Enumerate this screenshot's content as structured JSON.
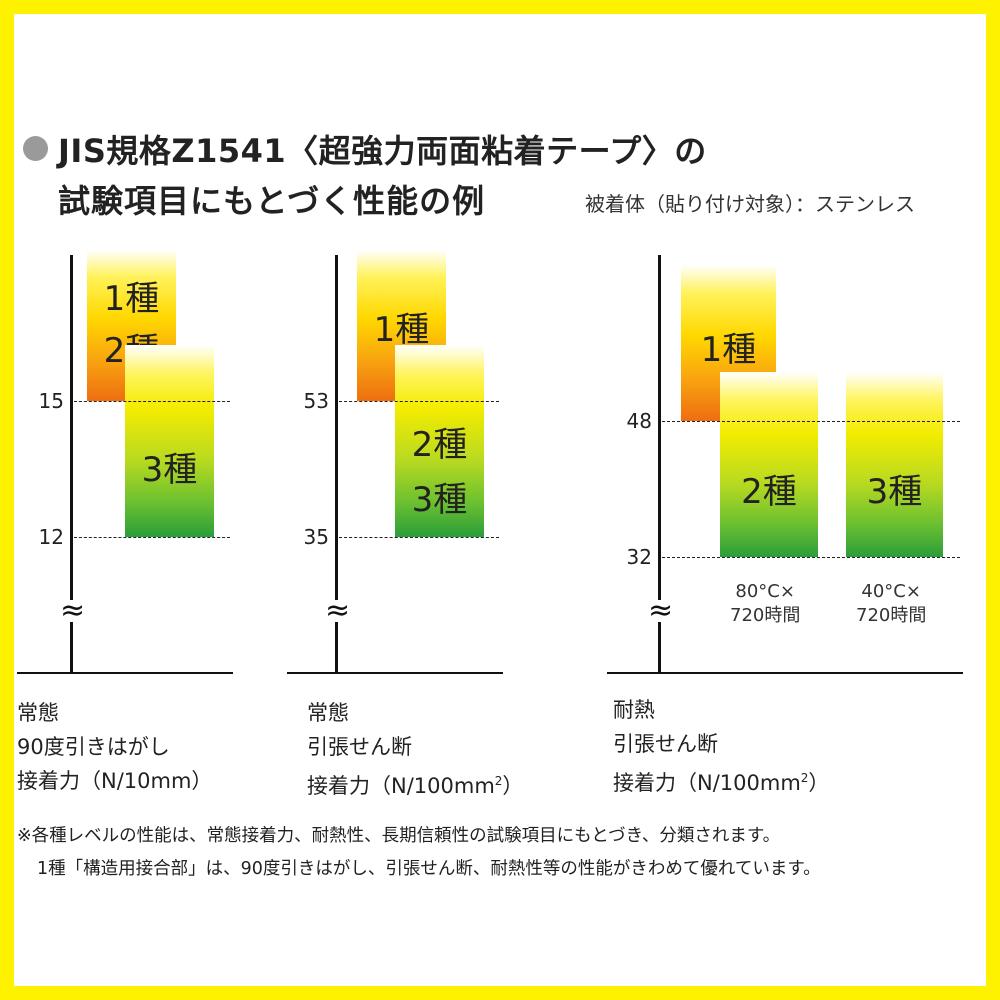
{
  "title": {
    "line1": "JIS規格Z1541〈超強力両面粘着テープ〉の",
    "line2": "試験項目にもとづく性能の例",
    "subtitle": "被着体（貼り付け対象）：ステンレス"
  },
  "colors": {
    "frame": "#fff200",
    "top_grade": "#ee6e10",
    "lower_grade": "#2a9e3a",
    "mid": "#f4ec00"
  },
  "chart_data": [
    {
      "type": "bar",
      "title": "常態 90度引きはがし 接着力（N/10mm）",
      "caption": [
        "常態",
        "90度引きはがし",
        "接着力（N/10mm）"
      ],
      "ticks": [
        "15",
        "12"
      ],
      "bars": [
        {
          "label": [
            "1種",
            "2種"
          ],
          "min": 15
        },
        {
          "label": [
            "3種"
          ],
          "min": 12,
          "max": 15
        }
      ]
    },
    {
      "type": "bar",
      "title": "常態 引張せん断 接着力（N/100mm2）",
      "caption": [
        "常態",
        "引張せん断",
        "接着力（N/100mm",
        "2",
        "）"
      ],
      "ticks": [
        "53",
        "35"
      ],
      "bars": [
        {
          "label": [
            "1種"
          ],
          "min": 53
        },
        {
          "label": [
            "2種",
            "3種"
          ],
          "min": 35,
          "max": 53
        }
      ]
    },
    {
      "type": "bar",
      "title": "耐熱 引張せん断 接着力（N/100mm2）",
      "caption": [
        "耐熱",
        "引張せん断",
        "接着力（N/100mm",
        "2",
        "）"
      ],
      "ticks": [
        "48",
        "32"
      ],
      "bars": [
        {
          "label": [
            "1種"
          ],
          "min": 48
        },
        {
          "label": [
            "2種"
          ],
          "min": 32,
          "max": 48,
          "note": [
            "80°C×",
            "720時間"
          ]
        },
        {
          "label": [
            "3種"
          ],
          "min": 32,
          "max": 48,
          "note": [
            "40°C×",
            "720時間"
          ]
        }
      ]
    }
  ],
  "axis_break": "≈",
  "footnotes": [
    "※各種レベルの性能は、常態接着力、耐熱性、長期信頼性の試験項目にもとづき、分類されます。",
    "1種「構造用接合部」は、90度引きはがし、引張せん断、耐熱性等の性能がきわめて優れています。"
  ]
}
